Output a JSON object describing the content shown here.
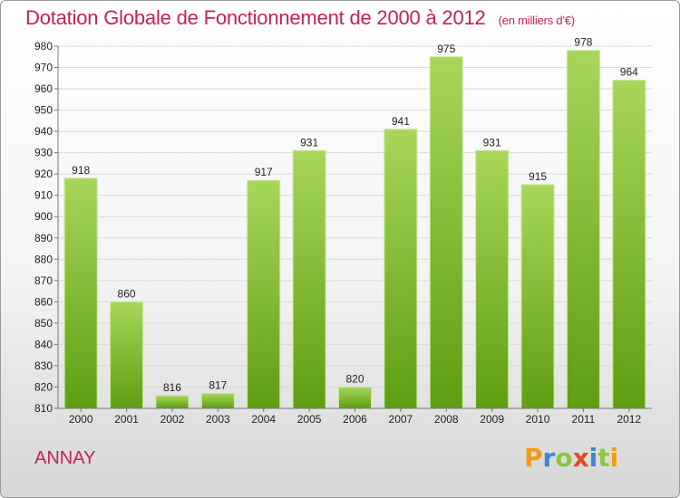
{
  "header": {
    "title": "Dotation Globale de Fonctionnement de 2000 à 2012",
    "subtitle": "(en milliers d'€)"
  },
  "commune": "ANNAY",
  "logo": {
    "letters": [
      "P",
      "r",
      "o",
      "x",
      "i",
      "t",
      "i"
    ],
    "colors": [
      "#f39c12",
      "#3b86d6",
      "#8cc63f",
      "#e8491d",
      "#3b86d6",
      "#8cc63f",
      "#f39c12"
    ]
  },
  "colors": {
    "bar_top": "#a8d65a",
    "bar_bottom": "#5e9e12",
    "title": "#c71f5a"
  },
  "chart_data": {
    "type": "bar",
    "title": "Dotation Globale de Fonctionnement de 2000 à 2012",
    "subtitle": "(en milliers d'€)",
    "xlabel": "",
    "ylabel": "",
    "categories": [
      "2000",
      "2001",
      "2002",
      "2003",
      "2004",
      "2005",
      "2006",
      "2007",
      "2008",
      "2009",
      "2010",
      "2011",
      "2012"
    ],
    "values": [
      918,
      860,
      816,
      817,
      917,
      931,
      820,
      941,
      975,
      931,
      915,
      978,
      964
    ],
    "ylim": [
      810,
      980
    ],
    "yticks": [
      810,
      820,
      830,
      840,
      850,
      860,
      870,
      880,
      890,
      900,
      910,
      920,
      930,
      940,
      950,
      960,
      970,
      980
    ],
    "grid": true
  }
}
